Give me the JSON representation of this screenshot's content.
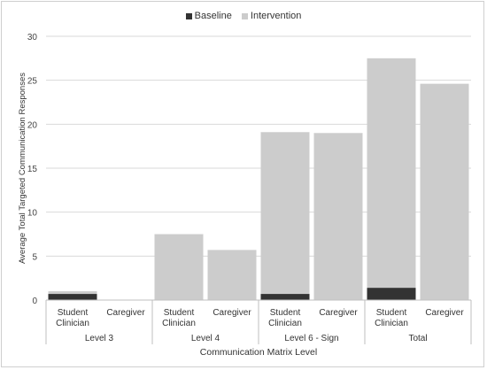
{
  "chart_data": {
    "type": "bar",
    "stacked": true,
    "ylabel": "Average Total Targeted Communication Responses",
    "xlabel": "Communication Matrix Level",
    "ylim": [
      0,
      30
    ],
    "yticks": [
      0,
      5,
      10,
      15,
      20,
      25,
      30
    ],
    "grid": true,
    "legend_position": "top-center",
    "groups": [
      {
        "label": "Level 3",
        "categories": [
          [
            "Student",
            "Clinician"
          ],
          [
            "Caregiver"
          ]
        ]
      },
      {
        "label": "Level 4",
        "categories": [
          [
            "Student",
            "Clinician"
          ],
          [
            "Caregiver"
          ]
        ]
      },
      {
        "label": "Level 6 - Sign",
        "categories": [
          [
            "Student",
            "Clinician"
          ],
          [
            "Caregiver"
          ]
        ]
      },
      {
        "label": "Total",
        "categories": [
          [
            "Student",
            "Clinician"
          ],
          [
            "Caregiver"
          ]
        ]
      }
    ],
    "series": [
      {
        "name": "Baseline",
        "color": "#333333",
        "values": [
          0.7,
          0,
          0,
          0,
          0.7,
          0,
          1.4,
          0
        ]
      },
      {
        "name": "Intervention",
        "color": "#cccccc",
        "values": [
          0.3,
          0,
          7.5,
          5.7,
          18.4,
          19.0,
          26.1,
          24.6
        ]
      }
    ]
  }
}
